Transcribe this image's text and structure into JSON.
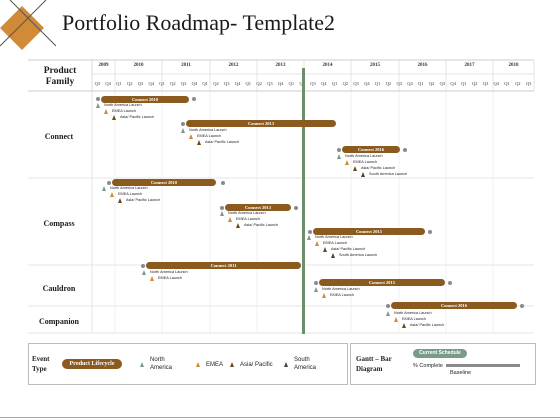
{
  "title": "Portfolio Roadmap- Template2",
  "colors": {
    "bar": "#8b5a1e",
    "diamond": "#d08a38",
    "divider": "#6b8f6b",
    "north_america": "#7a9a8a",
    "emea": "#d08a38",
    "asia_pacific": "#6b4a1e",
    "south_america": "#444444",
    "current_schedule": "#7a9a8a",
    "baseline": "#8a8a8a"
  },
  "product_family_label": "Product Family",
  "years": [
    "2009",
    "2010",
    "2011",
    "2012",
    "2013",
    "2014",
    "2015",
    "2016",
    "2017",
    "2018"
  ],
  "quarters": [
    "Q3",
    "Q4",
    "Q1",
    "Q2",
    "Q3",
    "Q4",
    "Q1",
    "Q2",
    "Q3",
    "Q4",
    "Q1",
    "Q2",
    "Q3",
    "Q4",
    "Q1",
    "Q2",
    "Q3",
    "Q4",
    "Q1",
    "Q2",
    "Q3",
    "Q4",
    "Q1",
    "Q2",
    "Q3",
    "Q4",
    "Q1",
    "Q2",
    "Q3",
    "Q4",
    "Q1",
    "Q2",
    "Q3",
    "Q4",
    "Q1",
    "Q2",
    "Q3",
    "Q4",
    "Q1",
    "Q2",
    "Q3"
  ],
  "rows": [
    "Connect",
    "Compass",
    "Cauldron",
    "Companion"
  ],
  "bars": [
    {
      "label": "Connect 2010"
    },
    {
      "label": "Connect 2013"
    },
    {
      "label": "Connect 2016"
    },
    {
      "label": "Connect 2010"
    },
    {
      "label": "Connect 2013"
    },
    {
      "label": "Connect 2015"
    },
    {
      "label": "Connect 2011"
    },
    {
      "label": "Connect 2015"
    },
    {
      "label": "Connect 2016"
    }
  ],
  "events": {
    "north_america": "North America Launch",
    "emea": "EMEA Launch",
    "asia_pacific": "Asia/ Pacific Launch",
    "south_america": "South America Launch"
  },
  "legend": {
    "event_type": "Event Type",
    "product_lifecycle": "Product Lifecycle",
    "north_america": "North America",
    "emea": "EMEA",
    "asia_pacific": "Asia/ Pacific",
    "south_america": "South America",
    "gantt_bar_diagram": "Gantt – Bar Diagram",
    "current_schedule": "Current Schedule",
    "percent_complete": "% Complete",
    "baseline": "Baseline"
  }
}
